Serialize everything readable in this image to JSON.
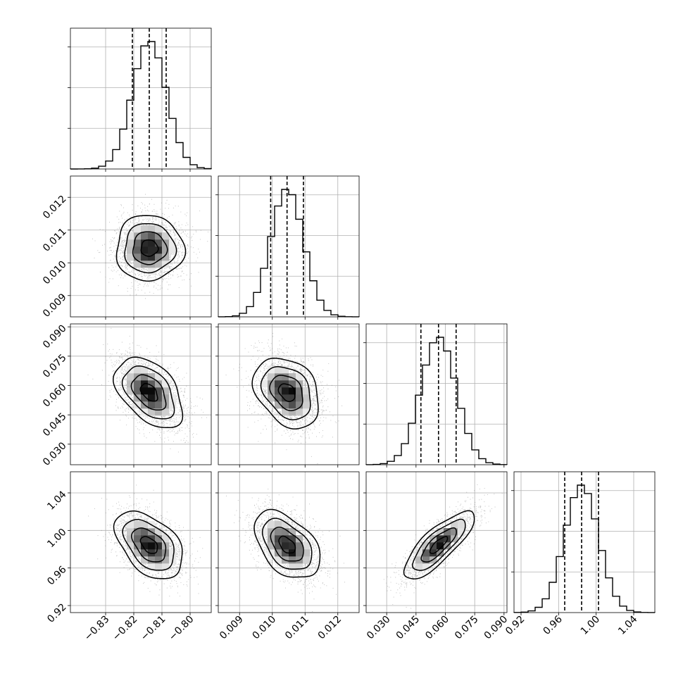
{
  "chart_data": {
    "type": "corner",
    "parameters": [
      {
        "name": "",
        "range": [
          -0.8425,
          -0.7925
        ],
        "ticks": [
          -0.83,
          -0.82,
          -0.81,
          -0.8
        ],
        "tick_labels": [
          "−0.83",
          "−0.82",
          "−0.81",
          "−0.80"
        ],
        "quantiles": [
          -0.8205,
          -0.8145,
          -0.8085
        ],
        "mean": -0.8145,
        "sd": 0.006
      },
      {
        "name": "",
        "range": [
          0.00835,
          0.01265
        ],
        "ticks": [
          0.009,
          0.01,
          0.011,
          0.012
        ],
        "tick_labels": [
          "0.009",
          "0.010",
          "0.011",
          "0.012"
        ],
        "quantiles": [
          0.00995,
          0.01045,
          0.01095
        ],
        "mean": 0.01045,
        "sd": 0.0005
      },
      {
        "name": "",
        "range": [
          0.0195,
          0.0915
        ],
        "ticks": [
          0.03,
          0.045,
          0.06,
          0.075,
          0.09
        ],
        "tick_labels": [
          "0.030",
          "0.045",
          "0.060",
          "0.075",
          "0.090"
        ],
        "quantiles": [
          0.0475,
          0.0565,
          0.0655
        ],
        "mean": 0.0565,
        "sd": 0.009
      },
      {
        "name": "",
        "range": [
          0.9125,
          1.0625
        ],
        "ticks": [
          0.92,
          0.96,
          1.0,
          1.04
        ],
        "tick_labels": [
          "0.92",
          "0.96",
          "1.00",
          "1.04"
        ],
        "quantiles": [
          0.9665,
          0.9845,
          1.0025
        ],
        "mean": 0.9845,
        "sd": 0.018
      }
    ],
    "correlations": [
      {
        "i": 0,
        "j": 1,
        "r": 0.0
      },
      {
        "i": 0,
        "j": 2,
        "r": -0.45
      },
      {
        "i": 0,
        "j": 3,
        "r": -0.45
      },
      {
        "i": 1,
        "j": 2,
        "r": -0.3
      },
      {
        "i": 1,
        "j": 3,
        "r": -0.45
      },
      {
        "i": 2,
        "j": 3,
        "r": 0.8
      }
    ],
    "contour_levels_sigma": [
      0.5,
      1.0,
      1.5,
      2.0
    ],
    "histogram_bins": 20,
    "grid": true,
    "quantile_line_style": "dashed"
  }
}
